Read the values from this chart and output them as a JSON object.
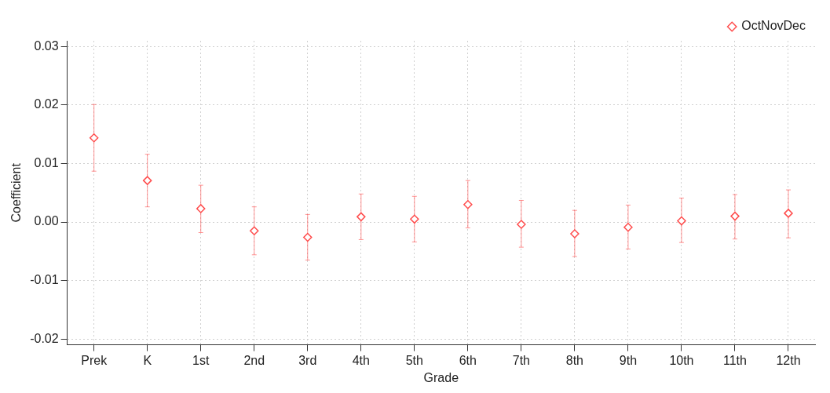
{
  "chart_data": {
    "type": "scatter",
    "xlabel": "Grade",
    "ylabel": "Coefficient",
    "categories": [
      "Prek",
      "K",
      "1st",
      "2nd",
      "3rd",
      "4th",
      "5th",
      "6th",
      "7th",
      "8th",
      "9th",
      "10th",
      "11th",
      "12th"
    ],
    "series": [
      {
        "name": "OctNovDec",
        "color": "#ff4d4d",
        "values": [
          0.0144,
          0.0071,
          0.0023,
          -0.0015,
          -0.0026,
          0.0009,
          0.0005,
          0.003,
          -0.0004,
          -0.002,
          -0.0009,
          0.0002,
          0.001,
          0.0015
        ],
        "errors": [
          [
            0.0087,
            0.0201
          ],
          [
            0.0026,
            0.0116
          ],
          [
            -0.0018,
            0.0063
          ],
          [
            -0.0056,
            0.0026
          ],
          [
            -0.0065,
            0.0013
          ],
          [
            -0.003,
            0.0048
          ],
          [
            -0.0034,
            0.0044
          ],
          [
            -0.001,
            0.0071
          ],
          [
            -0.0043,
            0.0037
          ],
          [
            -0.0059,
            0.002
          ],
          [
            -0.0046,
            0.0029
          ],
          [
            -0.0035,
            0.0041
          ],
          [
            -0.0029,
            0.0047
          ],
          [
            -0.0027,
            0.0055
          ]
        ]
      }
    ],
    "ylim": [
      -0.021,
      0.031
    ],
    "yticks": [
      -0.02,
      -0.01,
      {
        "value": 0,
        "label": "0.00"
      },
      0.01,
      0.02,
      0.03
    ],
    "grid": true,
    "legend": "top right",
    "marker": "diamond"
  }
}
